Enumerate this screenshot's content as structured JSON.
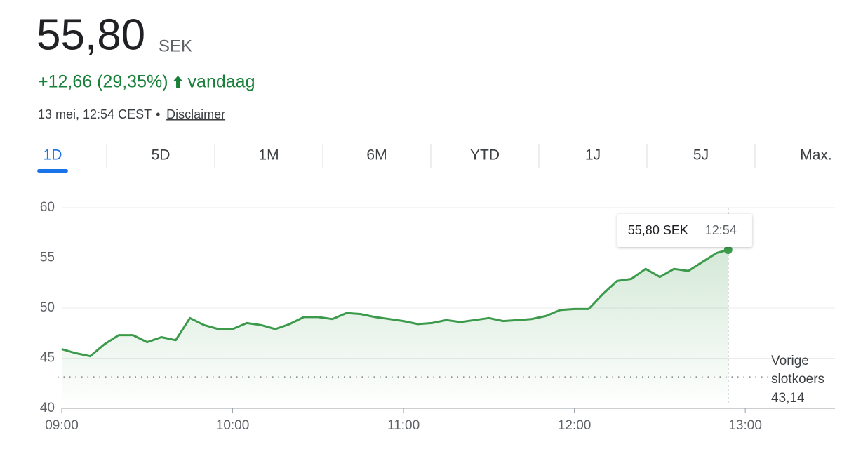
{
  "header": {
    "price": "55,80",
    "currency": "SEK",
    "change": "+12,66 (29,35%)",
    "period": "vandaag",
    "timestamp": "13 mei, 12:54 CEST",
    "separator": "•",
    "disclaimer": "Disclaimer"
  },
  "tabs": {
    "items": [
      "1D",
      "5D",
      "1M",
      "6M",
      "YTD",
      "1J",
      "5J",
      "Max."
    ],
    "active": 0
  },
  "chart_data": {
    "type": "line",
    "color": "#3c9a4b",
    "x": [
      540,
      545,
      550,
      555,
      560,
      565,
      570,
      575,
      580,
      585,
      590,
      595,
      600,
      605,
      610,
      615,
      620,
      625,
      630,
      635,
      640,
      645,
      650,
      655,
      660,
      665,
      670,
      675,
      680,
      685,
      690,
      695,
      700,
      705,
      710,
      715,
      720,
      725,
      730,
      735,
      740,
      745,
      750,
      755,
      760,
      765,
      770,
      774
    ],
    "values": [
      45.9,
      45.5,
      45.2,
      46.4,
      47.3,
      47.3,
      46.6,
      47.1,
      46.8,
      49.0,
      48.3,
      47.9,
      47.9,
      48.5,
      48.3,
      47.9,
      48.4,
      49.1,
      49.1,
      48.9,
      49.5,
      49.4,
      49.1,
      48.9,
      48.7,
      48.4,
      48.5,
      48.8,
      48.6,
      48.8,
      49.0,
      48.7,
      48.8,
      48.9,
      49.2,
      49.8,
      49.9,
      49.9,
      51.4,
      52.7,
      52.9,
      53.9,
      53.1,
      53.9,
      53.7,
      54.6,
      55.5,
      55.8
    ],
    "xlim": [
      540,
      811.5
    ],
    "xticks": [
      {
        "value": 540,
        "label": "09:00"
      },
      {
        "value": 600,
        "label": "10:00"
      },
      {
        "value": 660,
        "label": "11:00"
      },
      {
        "value": 720,
        "label": "12:00"
      },
      {
        "value": 780,
        "label": "13:00"
      }
    ],
    "ylim": [
      40,
      60
    ],
    "yticks": [
      40,
      45,
      50,
      55,
      60
    ],
    "grid": true,
    "reference_line": {
      "value": 43.14,
      "label": "43,14",
      "title": "Vorige slotkoers"
    },
    "tooltip": {
      "value_label": "55,80 SEK",
      "time": "12:54"
    }
  }
}
